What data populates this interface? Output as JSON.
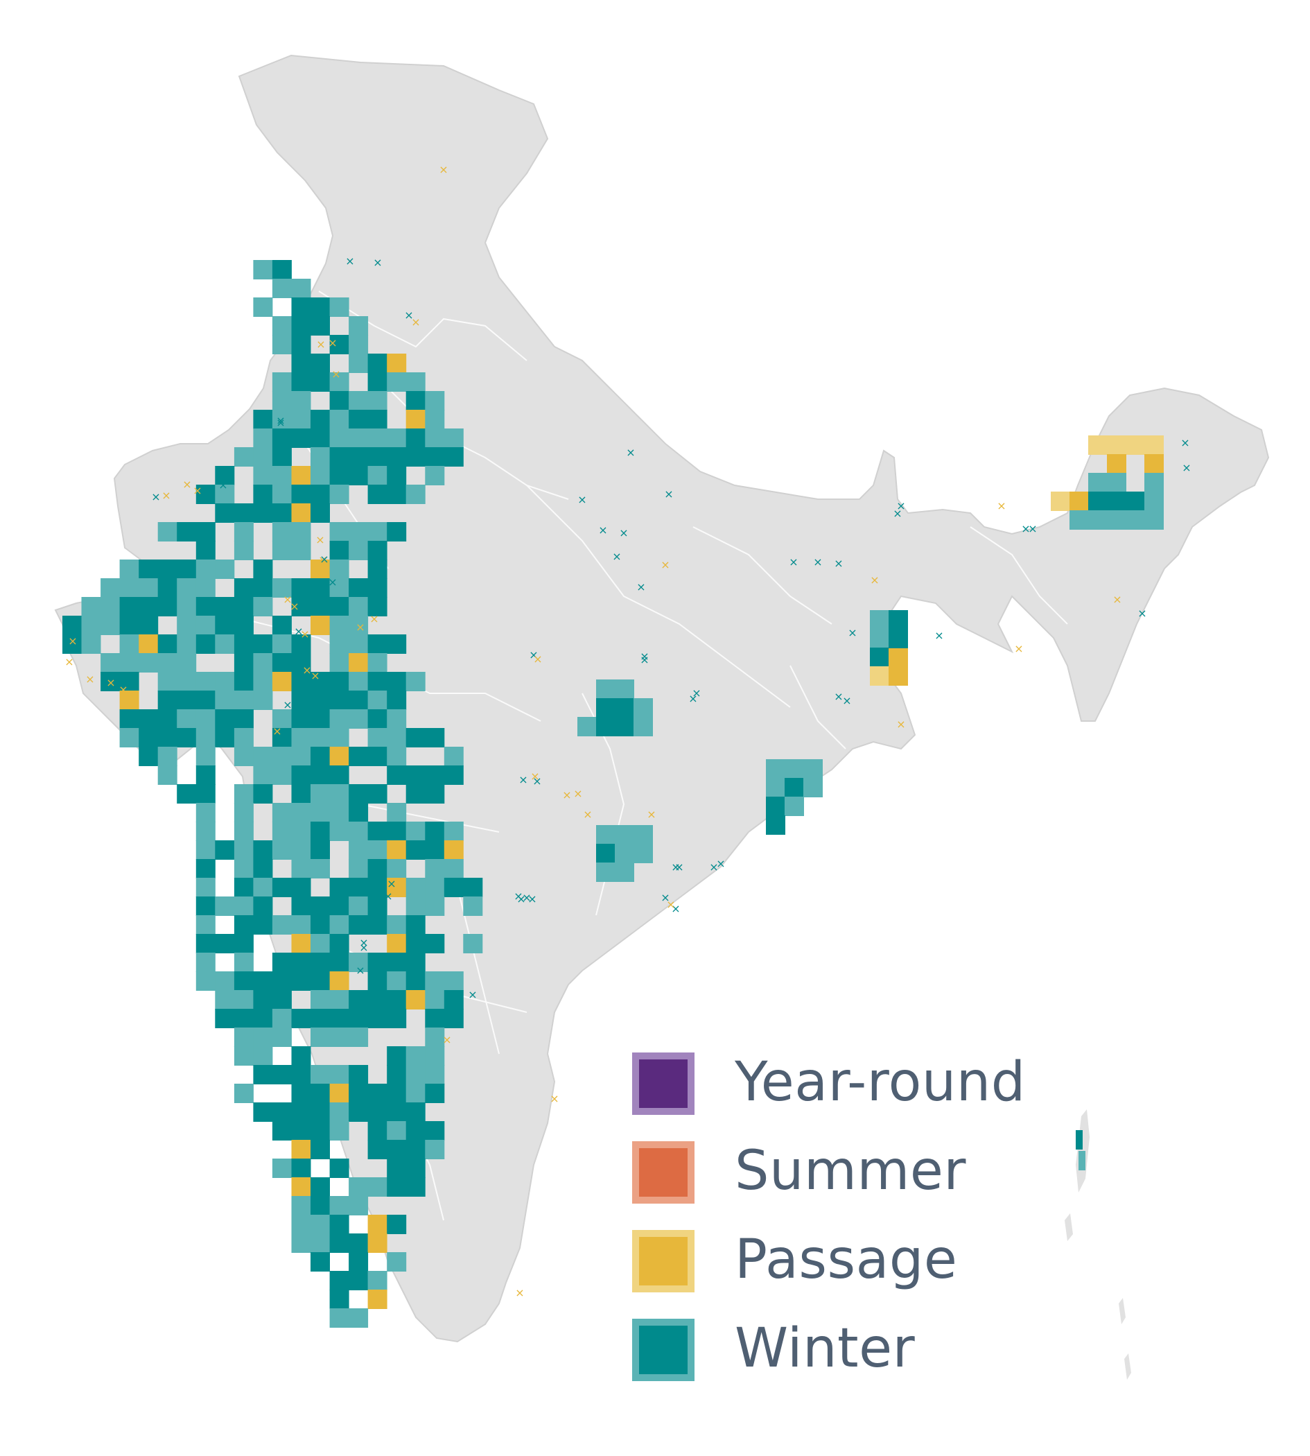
{
  "legend": {
    "items": [
      {
        "label": "Year-round",
        "color": "#5a2a7e",
        "border": "#a184bd"
      },
      {
        "label": "Summer",
        "color": "#dd6b43",
        "border": "#eba184"
      },
      {
        "label": "Passage",
        "color": "#e7b73a",
        "border": "#f0d480"
      },
      {
        "label": "Winter",
        "color": "#008a8c",
        "border": "#5ab3b5"
      }
    ]
  },
  "map": {
    "land_color": "#e1e1e1",
    "boundary_color": "#ffffff",
    "cell_colors": {
      "winter_core": "#008a8c",
      "winter_edge": "#5ab3b5",
      "passage_core": "#e7b73a",
      "passage_edge": "#f0d480"
    },
    "occurrence_marker": "×"
  }
}
